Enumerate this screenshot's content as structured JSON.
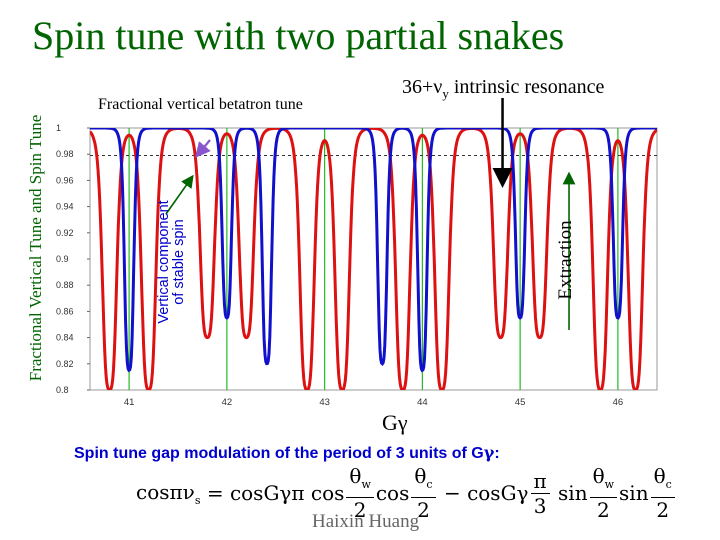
{
  "slide": {
    "title": "Spin tune with two partial snakes",
    "ylabel": "Fractional Vertical Tune and Spin Tune",
    "vertical_component_label": [
      "Vertical component",
      "of stable spin"
    ],
    "fractional_label": "Fractional vertical betatron tune",
    "resonance_label": {
      "prefix": "36+",
      "nu": "ν",
      "sub": "y",
      "suffix": " intrinsic resonance"
    },
    "extraction_label": "Extraction",
    "xlabel": "Gγ",
    "gap_text": {
      "before": "Spin tune gap modulation of the period of 3 units of G",
      "gamma": "γ",
      "after": ":"
    },
    "formula": {
      "lhs": "cosπν",
      "lhs_sub": "s",
      "eq": " = cosGγπ cos",
      "t2": " − cosGγ",
      "t3": " sin",
      "theta": "θ",
      "sub_w": "w",
      "sub_c": "c",
      "two": "2",
      "pi": "π",
      "three": "3"
    },
    "author": "Haixin Huang"
  },
  "chart_data": {
    "type": "line",
    "xlim": [
      40.6,
      46.4
    ],
    "ylim": [
      0.8,
      1.0
    ],
    "x_ticks": [
      "41",
      "42",
      "43",
      "44",
      "45",
      "46"
    ],
    "y_ticks": [
      "0.8",
      "0.82",
      "0.84",
      "0.86",
      "0.88",
      "0.9",
      "0.92",
      "0.94",
      "0.96",
      "0.98",
      "1"
    ],
    "grid": "vertical lines at integer Gγ",
    "dashed_reference": 0.979,
    "colors": {
      "spin": "#dd1111",
      "vertical": "#1111cc",
      "grid": "#22bb22",
      "dashed": "#333333",
      "arrow": "#000000",
      "pointer": "#8855cc"
    },
    "red_dips": [
      {
        "x": 40.8,
        "min": 0.8
      },
      {
        "x": 41.2,
        "min": 0.8
      },
      {
        "x": 41.8,
        "min": 0.84
      },
      {
        "x": 42.2,
        "min": 0.84
      },
      {
        "x": 42.82,
        "min": 0.8
      },
      {
        "x": 43.18,
        "min": 0.8
      },
      {
        "x": 43.8,
        "min": 0.8
      },
      {
        "x": 44.2,
        "min": 0.8
      },
      {
        "x": 44.8,
        "min": 0.84
      },
      {
        "x": 45.2,
        "min": 0.84
      },
      {
        "x": 45.82,
        "min": 0.8
      },
      {
        "x": 46.18,
        "min": 0.8
      }
    ],
    "blue_dips": [
      {
        "x": 41.0,
        "min": 0.815
      },
      {
        "x": 42.0,
        "min": 0.855
      },
      {
        "x": 42.41,
        "min": 0.82
      },
      {
        "x": 43.59,
        "min": 0.82
      },
      {
        "x": 44.0,
        "min": 0.815
      },
      {
        "x": 45.0,
        "min": 0.855
      },
      {
        "x": 46.0,
        "min": 0.855
      }
    ],
    "resonance_arrow_x": 44.82,
    "extraction_arrow_x": 45.5
  }
}
